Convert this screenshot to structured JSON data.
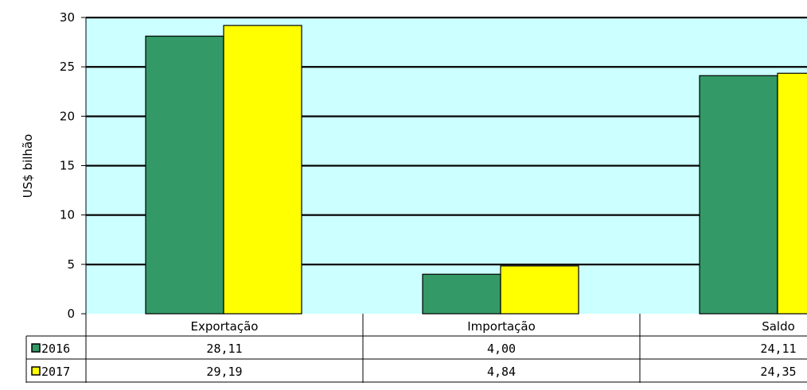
{
  "chart_data": {
    "type": "bar",
    "ylabel": "US$ bilhão",
    "ylim": [
      0,
      30
    ],
    "yticks": [
      0,
      5,
      10,
      15,
      20,
      25,
      30
    ],
    "grid": true,
    "categories": [
      "Exportação",
      "Importação",
      "Saldo"
    ],
    "series": [
      {
        "name": "2016",
        "values": [
          28.11,
          4.0,
          24.11
        ],
        "labels": [
          "28,11",
          "4,00",
          "24,11"
        ],
        "color": "#339966"
      },
      {
        "name": "2017",
        "values": [
          29.19,
          4.84,
          24.35
        ],
        "labels": [
          "29,19",
          "4,84",
          "24,35"
        ],
        "color": "#ffff00"
      }
    ],
    "plot_background": "#ccffff",
    "legend": "data-table"
  }
}
